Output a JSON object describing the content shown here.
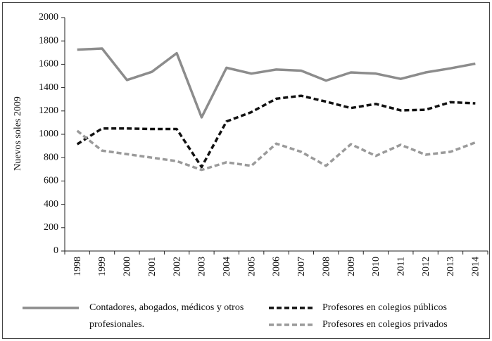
{
  "chart_data": {
    "type": "line",
    "ylabel": "Nuevos soles 2009",
    "categories": [
      "1998",
      "1999",
      "2000",
      "2001",
      "2002",
      "2003",
      "2004",
      "2005",
      "2006",
      "2007",
      "2008",
      "2009",
      "2010",
      "2011",
      "2012",
      "2013",
      "2014"
    ],
    "series": [
      {
        "name": "Contadores, abogados, médicos y otros profesionales.",
        "color": "#8c8c8c",
        "dash": false,
        "values": [
          1725,
          1735,
          1465,
          1535,
          1695,
          1145,
          1570,
          1520,
          1555,
          1545,
          1460,
          1530,
          1520,
          1475,
          1530,
          1565,
          1605
        ]
      },
      {
        "name": "Profesores en colegios públicos",
        "color": "#111111",
        "dash": true,
        "values": [
          915,
          1050,
          1050,
          1045,
          1045,
          720,
          1110,
          1190,
          1305,
          1330,
          1280,
          1225,
          1260,
          1205,
          1210,
          1275,
          1265
        ]
      },
      {
        "name": "Profesores en colegios privados",
        "color": "#9a9a9a",
        "dash": true,
        "values": [
          1030,
          860,
          830,
          800,
          770,
          695,
          760,
          730,
          920,
          850,
          730,
          915,
          815,
          910,
          825,
          850,
          930
        ]
      }
    ],
    "ylim": [
      0,
      2000
    ],
    "yticks": [
      0,
      200,
      400,
      600,
      800,
      1000,
      1200,
      1400,
      1600,
      1800,
      2000
    ],
    "grid": false
  }
}
